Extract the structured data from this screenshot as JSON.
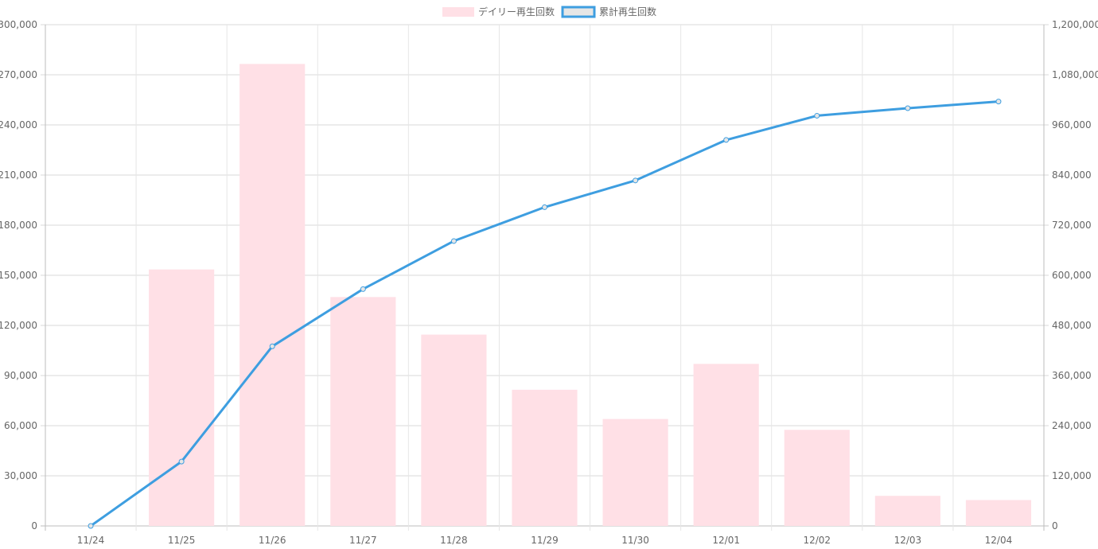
{
  "chart_data": {
    "type": "bar",
    "categories": [
      "11/24",
      "11/25",
      "11/26",
      "11/27",
      "11/28",
      "11/29",
      "11/30",
      "12/01",
      "12/02",
      "12/03",
      "12/04"
    ],
    "series": [
      {
        "name": "デイリー再生回数",
        "type": "bar",
        "axis": "left",
        "color": "#ffe0e6",
        "values": [
          0,
          153500,
          276500,
          137000,
          114500,
          81500,
          64000,
          97000,
          57500,
          18000,
          15500
        ]
      },
      {
        "name": "累計再生回数",
        "type": "line",
        "axis": "right",
        "color": "#3e9ee0",
        "point_border": "#3e9ee0",
        "point_fill": "#e6e6e6",
        "values": [
          0,
          154000,
          430000,
          567000,
          682000,
          763000,
          827000,
          924000,
          982000,
          1000000,
          1016000
        ]
      }
    ],
    "y_left": {
      "min": 0,
      "max": 300000,
      "step": 30000,
      "tick_labels": [
        "0",
        "30,000",
        "60,000",
        "90,000",
        "120,000",
        "150,000",
        "180,000",
        "210,000",
        "240,000",
        "270,000",
        "300,000"
      ]
    },
    "y_right": {
      "min": 0,
      "max": 1200000,
      "step": 120000,
      "tick_labels": [
        "0",
        "120,000",
        "240,000",
        "360,000",
        "480,000",
        "600,000",
        "720,000",
        "840,000",
        "960,000",
        "1,080,000",
        "1,200,000"
      ]
    },
    "legend": {
      "position": "top",
      "items": [
        "デイリー再生回数",
        "累計再生回数"
      ]
    },
    "grid": true
  }
}
